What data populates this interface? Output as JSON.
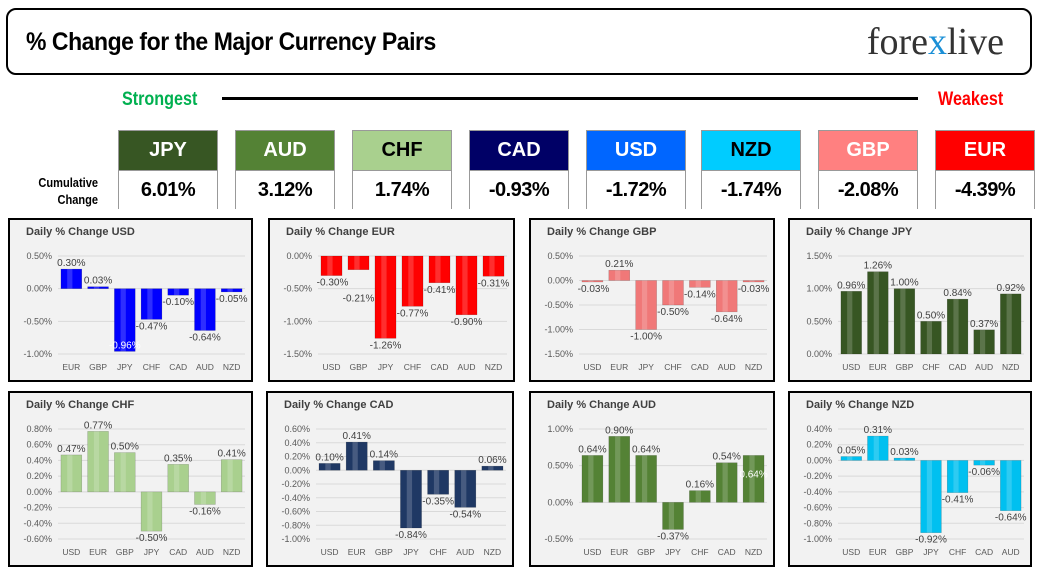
{
  "header": {
    "title": "% Change for the Major Currency Pairs",
    "logo": "forexlive",
    "strongest": "Strongest",
    "weakest": "Weakest",
    "cumulative_label": "Cumulative Change"
  },
  "ranking": [
    {
      "currency": "JPY",
      "change": "6.01%",
      "bg": "#375623",
      "fg": "#ffffff"
    },
    {
      "currency": "AUD",
      "change": "3.12%",
      "bg": "#548235",
      "fg": "#ffffff"
    },
    {
      "currency": "CHF",
      "change": "1.74%",
      "bg": "#a9d08e",
      "fg": "#000000"
    },
    {
      "currency": "CAD",
      "change": "-0.93%",
      "bg": "#000066",
      "fg": "#ffffff"
    },
    {
      "currency": "USD",
      "change": "-1.72%",
      "bg": "#0066ff",
      "fg": "#ffffff"
    },
    {
      "currency": "NZD",
      "change": "-1.74%",
      "bg": "#00ccff",
      "fg": "#000000"
    },
    {
      "currency": "GBP",
      "change": "-2.08%",
      "bg": "#ff8080",
      "fg": "#ffffff"
    },
    {
      "currency": "EUR",
      "change": "-4.39%",
      "bg": "#ff0000",
      "fg": "#ffffff"
    }
  ],
  "chart_data": [
    {
      "type": "bar",
      "title": "Daily % Change USD",
      "color": "#0000ff",
      "categories": [
        "EUR",
        "GBP",
        "JPY",
        "CHF",
        "CAD",
        "AUD",
        "NZD"
      ],
      "values": [
        0.3,
        0.03,
        -0.96,
        -0.47,
        -0.1,
        -0.64,
        -0.05
      ],
      "labels": [
        "0.30%",
        "0.03%",
        "-0.96%",
        "-0.47%",
        "-0.10%",
        "-0.64%",
        "-0.05%"
      ],
      "ylim": [
        -1.0,
        0.5
      ],
      "yticks": [
        "0.50%",
        "0.00%",
        "-0.50%",
        "-1.00%"
      ],
      "grid": true
    },
    {
      "type": "bar",
      "title": "Daily % Change EUR",
      "color": "#ff0000",
      "categories": [
        "USD",
        "GBP",
        "JPY",
        "CHF",
        "CAD",
        "AUD",
        "NZD"
      ],
      "values": [
        -0.3,
        -0.21,
        -1.26,
        -0.77,
        -0.41,
        -0.9,
        -0.31
      ],
      "labels": [
        "-0.30%",
        "-0.21%",
        "-1.26%",
        "-0.77%",
        "-0.41%",
        "-0.90%",
        "-0.31%"
      ],
      "ylim": [
        -1.5,
        0.0
      ],
      "yticks": [
        "0.00%",
        "-0.50%",
        "-1.00%",
        "-1.50%"
      ],
      "grid": true
    },
    {
      "type": "bar",
      "title": "Daily % Change GBP",
      "color": "#f07878",
      "categories": [
        "USD",
        "EUR",
        "JPY",
        "CHF",
        "CAD",
        "AUD",
        "NZD"
      ],
      "values": [
        -0.03,
        0.21,
        -1.0,
        -0.5,
        -0.14,
        -0.64,
        -0.03
      ],
      "labels": [
        "-0.03%",
        "0.21%",
        "-1.00%",
        "-0.50%",
        "-0.14%",
        "-0.64%",
        "-0.03%"
      ],
      "ylim": [
        -1.5,
        0.5
      ],
      "yticks": [
        "0.50%",
        "0.00%",
        "-0.50%",
        "-1.00%",
        "-1.50%"
      ],
      "grid": true
    },
    {
      "type": "bar",
      "title": "Daily % Change JPY",
      "color": "#375623",
      "categories": [
        "USD",
        "EUR",
        "GBP",
        "CHF",
        "CAD",
        "AUD",
        "NZD"
      ],
      "values": [
        0.96,
        1.26,
        1.0,
        0.5,
        0.84,
        0.37,
        0.92
      ],
      "labels": [
        "0.96%",
        "1.26%",
        "1.00%",
        "0.50%",
        "0.84%",
        "0.37%",
        "0.92%"
      ],
      "ylim": [
        0.0,
        1.5
      ],
      "yticks": [
        "1.50%",
        "1.00%",
        "0.50%",
        "0.00%"
      ],
      "grid": true
    },
    {
      "type": "bar",
      "title": "Daily % Change CHF",
      "color": "#a9d08e",
      "categories": [
        "USD",
        "EUR",
        "GBP",
        "JPY",
        "CAD",
        "AUD",
        "NZD"
      ],
      "values": [
        0.47,
        0.77,
        0.5,
        -0.5,
        0.35,
        -0.16,
        0.41
      ],
      "labels": [
        "0.47%",
        "0.77%",
        "0.50%",
        "-0.50%",
        "0.35%",
        "-0.16%",
        "0.41%"
      ],
      "ylim": [
        -0.6,
        0.8
      ],
      "yticks": [
        "0.80%",
        "0.60%",
        "0.40%",
        "0.20%",
        "0.00%",
        "-0.20%",
        "-0.40%",
        "-0.60%"
      ],
      "grid": true
    },
    {
      "type": "bar",
      "title": "Daily % Change CAD",
      "color": "#1f3864",
      "categories": [
        "USD",
        "EUR",
        "GBP",
        "JPY",
        "CHF",
        "AUD",
        "NZD"
      ],
      "values": [
        0.1,
        0.41,
        0.14,
        -0.84,
        -0.35,
        -0.54,
        0.06
      ],
      "labels": [
        "0.10%",
        "0.41%",
        "0.14%",
        "-0.84%",
        "-0.35%",
        "-0.54%",
        "0.06%"
      ],
      "ylim": [
        -1.0,
        0.6
      ],
      "yticks": [
        "0.60%",
        "0.40%",
        "0.20%",
        "0.00%",
        "-0.20%",
        "-0.40%",
        "-0.60%",
        "-0.80%",
        "-1.00%"
      ],
      "grid": true
    },
    {
      "type": "bar",
      "title": "Daily % Change AUD",
      "color": "#548235",
      "categories": [
        "USD",
        "EUR",
        "GBP",
        "JPY",
        "CHF",
        "CAD",
        "NZD"
      ],
      "values": [
        0.64,
        0.9,
        0.64,
        -0.37,
        0.16,
        0.54,
        0.64
      ],
      "labels": [
        "0.64%",
        "0.90%",
        "0.64%",
        "-0.37%",
        "0.16%",
        "0.54%",
        "0.64%"
      ],
      "ylim": [
        -0.5,
        1.0
      ],
      "yticks": [
        "1.00%",
        "0.50%",
        "0.00%",
        "-0.50%"
      ],
      "grid": true
    },
    {
      "type": "bar",
      "title": "Daily % Change NZD",
      "color": "#00c0f0",
      "categories": [
        "USD",
        "EUR",
        "GBP",
        "JPY",
        "CHF",
        "CAD",
        "AUD"
      ],
      "values": [
        0.05,
        0.31,
        0.03,
        -0.92,
        -0.41,
        -0.06,
        -0.64
      ],
      "labels": [
        "0.05%",
        "0.31%",
        "0.03%",
        "-0.92%",
        "-0.41%",
        "-0.06%",
        "-0.64%"
      ],
      "ylim": [
        -1.0,
        0.4
      ],
      "yticks": [
        "0.40%",
        "0.20%",
        "0.00%",
        "-0.20%",
        "-0.40%",
        "-0.60%",
        "-0.80%",
        "-1.00%"
      ],
      "grid": true
    }
  ]
}
